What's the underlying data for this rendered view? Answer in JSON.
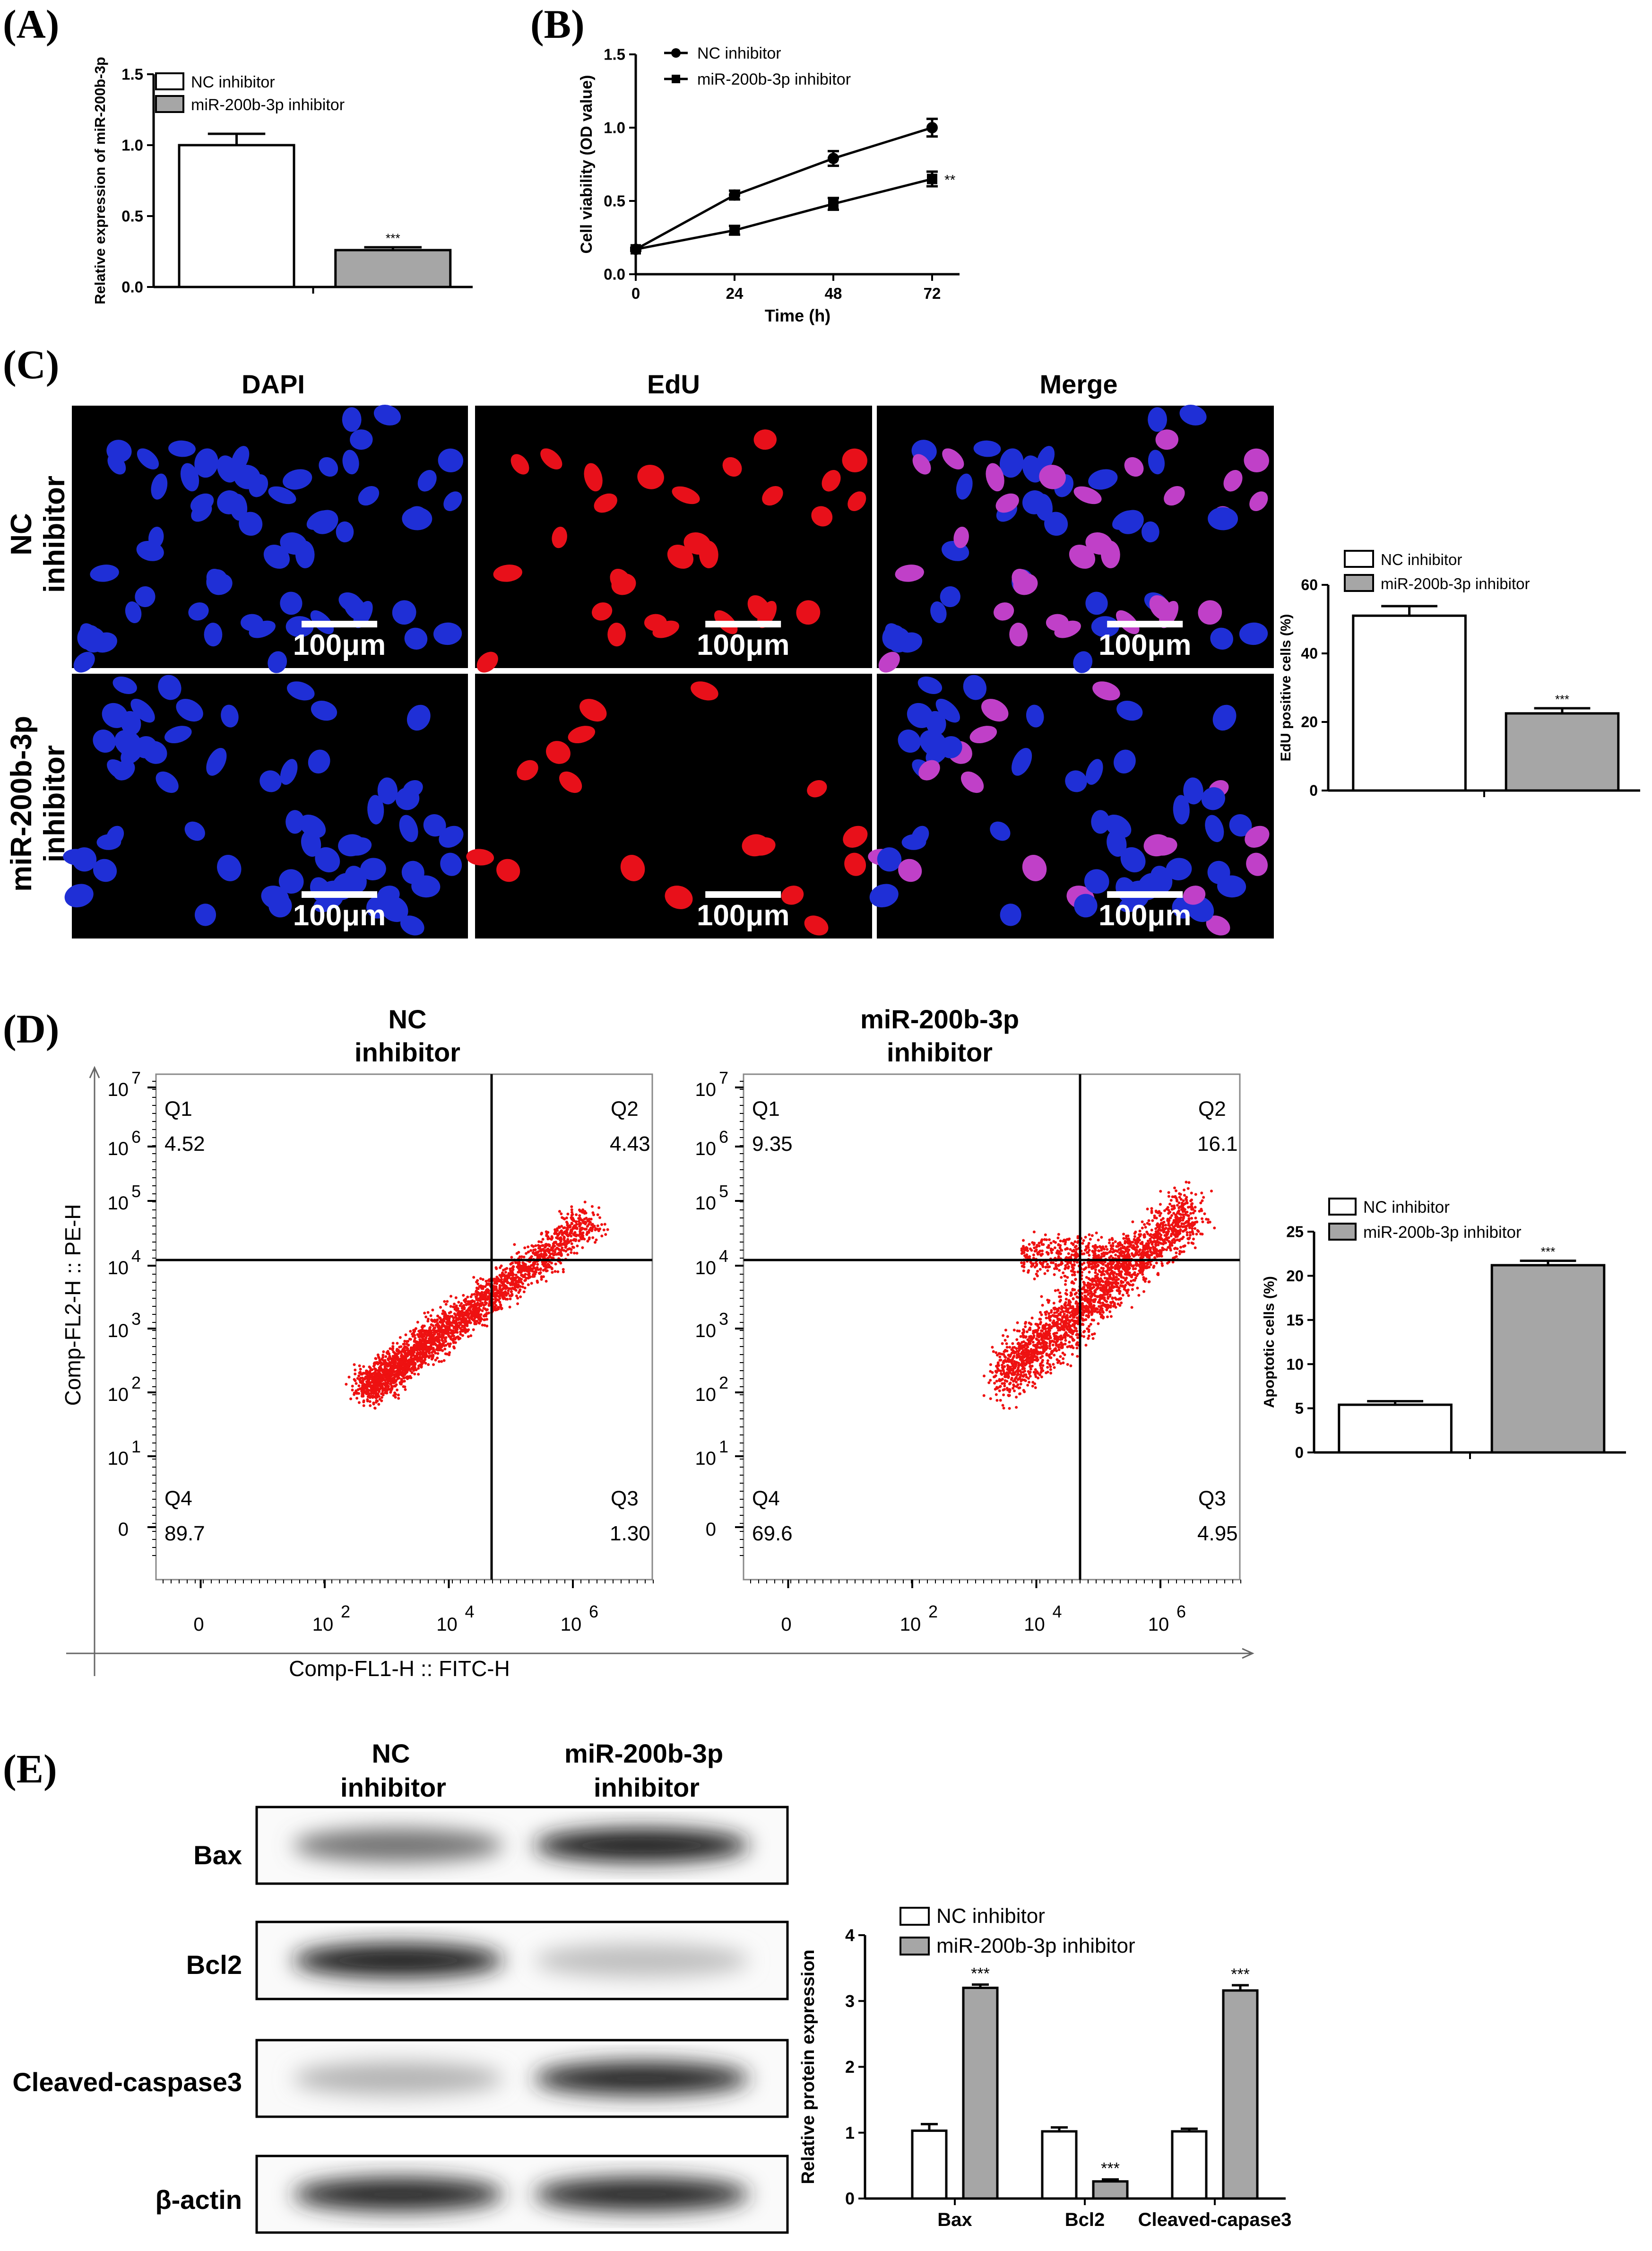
{
  "panels": {
    "A": "(A)",
    "B": "(B)",
    "C": "(C)",
    "D": "(D)",
    "E": "(E)"
  },
  "legend": {
    "nc": "NC inhibitor",
    "mir": "miR-200b-3p inhibitor"
  },
  "colors": {
    "bar_nc": "#ffffff",
    "bar_mir": "#a6a6a6",
    "dapi": "#1f2fd6",
    "edu": "#e8101a",
    "merge": "#c040c8",
    "flow_dot": "#ee1111"
  },
  "chart_data": [
    {
      "id": "A",
      "type": "bar",
      "categories": [
        "NC inhibitor",
        "miR-200b-3p inhibitor"
      ],
      "values": [
        1.0,
        0.26
      ],
      "errors": [
        0.08,
        0.02
      ],
      "significance": [
        "",
        "***"
      ],
      "ylabel": "Relative expression of miR-200b-3p",
      "ylim": [
        0,
        1.5
      ],
      "yticks": [
        "0.0",
        "0.5",
        "1.0",
        "1.5"
      ]
    },
    {
      "id": "B",
      "type": "line",
      "x": [
        0,
        24,
        48,
        72
      ],
      "series": [
        {
          "name": "NC inhibitor",
          "values": [
            0.17,
            0.54,
            0.79,
            1.0
          ],
          "errors": [
            0.01,
            0.03,
            0.05,
            0.06
          ],
          "marker": "circle"
        },
        {
          "name": "miR-200b-3p inhibitor",
          "values": [
            0.17,
            0.3,
            0.48,
            0.65
          ],
          "errors": [
            0.01,
            0.03,
            0.04,
            0.05
          ],
          "marker": "square",
          "significance": "**"
        }
      ],
      "xlabel": "Time (h)",
      "ylabel": "Cell viability (OD value)",
      "ylim": [
        0,
        1.5
      ],
      "yticks": [
        "0.0",
        "0.5",
        "1.0",
        "1.5"
      ],
      "xticks": [
        "0",
        "24",
        "48",
        "72"
      ]
    },
    {
      "id": "C",
      "type": "bar",
      "categories": [
        "NC inhibitor",
        "miR-200b-3p inhibitor"
      ],
      "values": [
        51,
        22.5
      ],
      "errors": [
        2.8,
        1.5
      ],
      "significance": [
        "",
        "***"
      ],
      "ylabel": "EdU positive cells (%)",
      "ylim": [
        0,
        60
      ],
      "yticks": [
        "0",
        "20",
        "40",
        "60"
      ]
    },
    {
      "id": "D",
      "type": "bar",
      "categories": [
        "NC inhibitor",
        "miR-200b-3p inhibitor"
      ],
      "values": [
        5.4,
        21.2
      ],
      "errors": [
        0.4,
        0.5
      ],
      "significance": [
        "",
        "***"
      ],
      "ylabel": "Apoptotic cells (%)",
      "ylim": [
        0,
        25
      ],
      "yticks": [
        "0",
        "5",
        "10",
        "15",
        "20",
        "25"
      ]
    },
    {
      "id": "E",
      "type": "bar",
      "categories": [
        "Bax",
        "Bcl2",
        "Cleaved-capase3"
      ],
      "series": [
        {
          "name": "NC inhibitor",
          "values": [
            1.03,
            1.02,
            1.02
          ],
          "errors": [
            0.1,
            0.06,
            0.04
          ]
        },
        {
          "name": "miR-200b-3p inhibitor",
          "values": [
            3.2,
            0.26,
            3.16
          ],
          "errors": [
            0.05,
            0.03,
            0.08
          ],
          "significance": [
            "***",
            "***",
            "***"
          ]
        }
      ],
      "ylabel": "Relative protein expression",
      "ylim": [
        0,
        4
      ],
      "yticks": [
        "0",
        "1",
        "2",
        "3",
        "4"
      ]
    }
  ],
  "microscopy": {
    "columns": [
      "DAPI",
      "EdU",
      "Merge"
    ],
    "rows": [
      [
        "NC",
        "inhibitor"
      ],
      [
        "miR-200b-3p",
        "inhibitor"
      ]
    ],
    "scale_bar": "100μm"
  },
  "flow": {
    "titles": [
      [
        "NC",
        "inhibitor"
      ],
      [
        "miR-200b-3p",
        "inhibitor"
      ]
    ],
    "quadrant_names": [
      "Q1",
      "Q2",
      "Q3",
      "Q4"
    ],
    "plots": [
      {
        "q1": "4.52",
        "q2": "4.43",
        "q3": "1.30",
        "q4": "89.7"
      },
      {
        "q1": "9.35",
        "q2": "16.1",
        "q3": "4.95",
        "q4": "69.6"
      }
    ],
    "ylabel": "Comp-FL2-H :: PE-H",
    "xlabel": "Comp-FL1-H :: FITC-H",
    "ytick_bases": [
      "10",
      "10",
      "10",
      "10",
      "10",
      "10",
      "10",
      "0"
    ],
    "ytick_exps": [
      "7",
      "6",
      "5",
      "4",
      "3",
      "2",
      "1",
      ""
    ],
    "xtick_bases": [
      "0",
      "10",
      "10",
      "10"
    ],
    "xtick_exps": [
      "",
      "2",
      "4",
      "6"
    ]
  },
  "western": {
    "columns": [
      [
        "NC",
        "inhibitor"
      ],
      [
        "miR-200b-3p",
        "inhibitor"
      ]
    ],
    "rows": [
      "Bax",
      "Bcl2",
      "Cleaved-caspase3",
      "β-actin"
    ],
    "band_intensity": [
      [
        0.55,
        0.95
      ],
      [
        0.95,
        0.2
      ],
      [
        0.25,
        0.9
      ],
      [
        0.9,
        0.9
      ]
    ]
  }
}
